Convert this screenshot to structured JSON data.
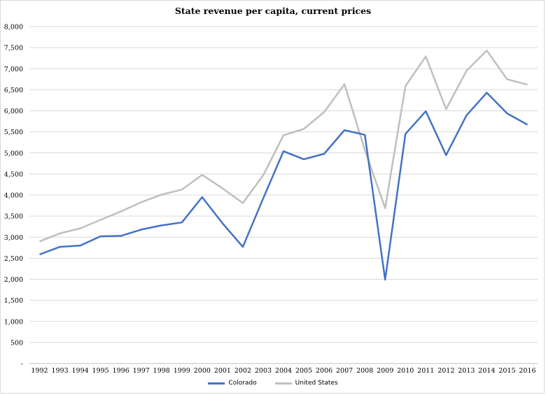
{
  "chart_data": {
    "type": "line",
    "title": "State revenue per capita, current prices",
    "xlabel": "",
    "ylabel": "",
    "x": [
      "1992",
      "1993",
      "1994",
      "1995",
      "1996",
      "1997",
      "1998",
      "1999",
      "2000",
      "2001",
      "2002",
      "2003",
      "2004",
      "2005",
      "2006",
      "2007",
      "2008",
      "2009",
      "2010",
      "2011",
      "2012",
      "2013",
      "2014",
      "2015",
      "2016"
    ],
    "ylim": [
      0,
      8000
    ],
    "yticks": [
      0,
      500,
      1000,
      1500,
      2000,
      2500,
      3000,
      3500,
      4000,
      4500,
      5000,
      5500,
      6000,
      6500,
      7000,
      7500,
      8000
    ],
    "ytick_labels": [
      "-",
      "500",
      "1,000",
      "1,500",
      "2,000",
      "2,500",
      "3,000",
      "3,500",
      "4,000",
      "4,500",
      "5,000",
      "5,500",
      "6,000",
      "6,500",
      "7,000",
      "7,500",
      "8,000"
    ],
    "grid": "horizontal",
    "legend_position": "bottom",
    "series": [
      {
        "name": "Colorado",
        "color": "#4472c4",
        "values": [
          2590,
          2770,
          2800,
          3020,
          3030,
          3180,
          3280,
          3350,
          3950,
          3330,
          2770,
          3920,
          5040,
          4850,
          4980,
          5540,
          5430,
          1990,
          5450,
          5990,
          4950,
          5890,
          6430,
          5940,
          5670
        ]
      },
      {
        "name": "United States",
        "color": "#bfbfbf",
        "values": [
          2900,
          3090,
          3210,
          3410,
          3610,
          3830,
          4010,
          4130,
          4480,
          4160,
          3810,
          4470,
          5420,
          5570,
          5970,
          6630,
          5070,
          3690,
          6590,
          7290,
          6040,
          6950,
          7430,
          6750,
          6620
        ]
      }
    ]
  }
}
